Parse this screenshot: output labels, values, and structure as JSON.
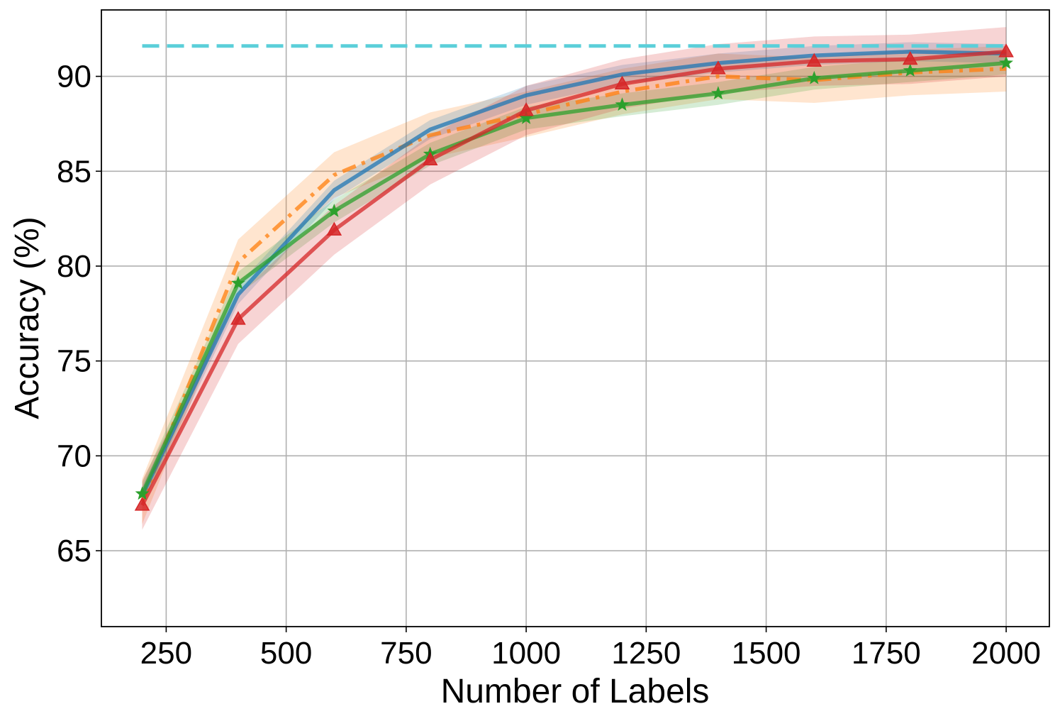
{
  "chart_data": {
    "type": "line",
    "title": "",
    "xlabel": "Number of Labels",
    "ylabel": "Accuracy (%)",
    "xlim": [
      115,
      2090
    ],
    "ylim": [
      61,
      93.5
    ],
    "xticks": [
      250,
      500,
      750,
      1000,
      1250,
      1500,
      1750,
      2000
    ],
    "yticks": [
      65,
      70,
      75,
      80,
      85,
      90
    ],
    "grid": true,
    "legend": "none",
    "x": [
      200,
      400,
      600,
      800,
      1000,
      1200,
      1400,
      1600,
      1800,
      2000
    ],
    "reference_line": {
      "y": 91.6,
      "x_range": [
        200,
        2000
      ],
      "color": "#5bcfd9",
      "style": "dashed"
    },
    "series": [
      {
        "color": "#ff7f0e",
        "style": "dashdot",
        "marker": "none",
        "values": [
          67.6,
          80.2,
          84.8,
          86.9,
          88.0,
          89.2,
          90.0,
          89.8,
          90.2,
          90.4
        ],
        "band": 1.2
      },
      {
        "color": "#1f77b4",
        "style": "solid",
        "marker": "none",
        "values": [
          67.9,
          78.5,
          84.0,
          87.2,
          89.0,
          90.1,
          90.7,
          91.1,
          91.3,
          91.2
        ],
        "band": 0.5
      },
      {
        "color": "#2ca02c",
        "style": "solid",
        "marker": "star",
        "values": [
          68.0,
          79.1,
          82.9,
          85.9,
          87.8,
          88.5,
          89.1,
          89.9,
          90.3,
          90.7
        ],
        "band": 0.6
      },
      {
        "color": "#d62728",
        "style": "solid",
        "marker": "triangle",
        "values": [
          67.4,
          77.2,
          81.9,
          85.6,
          88.2,
          89.6,
          90.4,
          90.8,
          90.9,
          91.3
        ],
        "band": 1.3
      }
    ]
  }
}
